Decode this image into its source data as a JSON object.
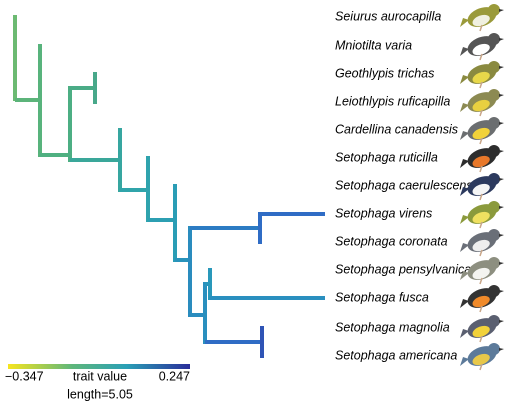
{
  "tips": [
    "Seiurus aurocapilla",
    "Mniotilta varia",
    "Geothlypis trichas",
    "Leiothlypis ruficapilla",
    "Cardellina canadensis",
    "Setophaga ruticilla",
    "Setophaga caerulescens",
    "Setophaga virens",
    "Setophaga coronata",
    "Setophaga pensylvanica",
    "Setophaga fusca",
    "Setophaga magnolia",
    "Setophaga americana"
  ],
  "legend": {
    "min_label": "−0.347",
    "title": "trait value",
    "max_label": "0.247",
    "length_label": "length=5.05"
  }
}
